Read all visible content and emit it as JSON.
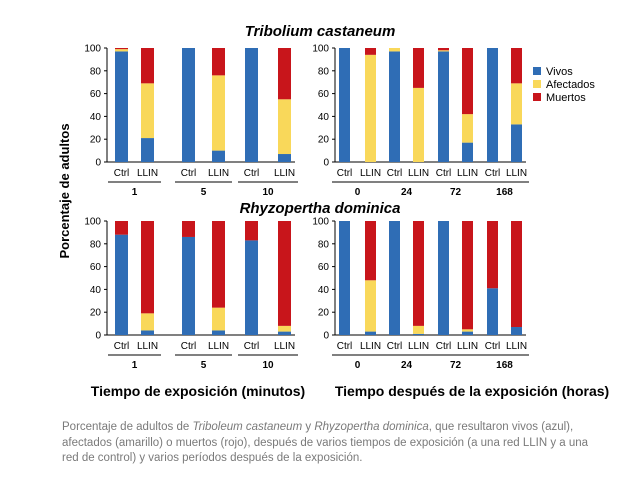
{
  "chart_data": {
    "type": "bar",
    "stacked": true,
    "colors": {
      "Vivos": "#2f6db5",
      "Afectados": "#f9d85a",
      "Muertos": "#c8151b"
    },
    "legend": {
      "entries": [
        "Vivos",
        "Afectados",
        "Muertos"
      ],
      "placement": "top-right"
    },
    "ylabel": "Porcentaje de adultos",
    "ylim": [
      0,
      100
    ],
    "yticks": [
      0,
      20,
      40,
      60,
      80,
      100
    ],
    "xlabel_left": "Tiempo de exposición (minutos)",
    "xlabel_right": "Tiempo después de la exposición (horas)",
    "bar_labels": [
      "Ctrl",
      "LLIN"
    ],
    "rows": [
      {
        "species": "Tribolium castaneum",
        "panels": [
          {
            "groups": [
              {
                "label": "1",
                "bars": [
                  {
                    "label": "Ctrl",
                    "Vivos": 97,
                    "Afectados": 2,
                    "Muertos": 1
                  },
                  {
                    "label": "LLIN",
                    "Vivos": 21,
                    "Afectados": 48,
                    "Muertos": 31
                  }
                ]
              },
              {
                "label": "5",
                "bars": [
                  {
                    "label": "Ctrl",
                    "Vivos": 100,
                    "Afectados": 0,
                    "Muertos": 0
                  },
                  {
                    "label": "LLIN",
                    "Vivos": 10,
                    "Afectados": 66,
                    "Muertos": 24
                  }
                ]
              },
              {
                "label": "10",
                "bars": [
                  {
                    "label": "Ctrl",
                    "Vivos": 100,
                    "Afectados": 0,
                    "Muertos": 0
                  },
                  {
                    "label": "LLIN",
                    "Vivos": 7,
                    "Afectados": 48,
                    "Muertos": 45
                  }
                ]
              }
            ]
          },
          {
            "groups": [
              {
                "label": "0",
                "bars": [
                  {
                    "label": "Ctrl",
                    "Vivos": 100,
                    "Afectados": 0,
                    "Muertos": 0
                  },
                  {
                    "label": "LLIN",
                    "Vivos": 0,
                    "Afectados": 94,
                    "Muertos": 6
                  }
                ]
              },
              {
                "label": "24",
                "bars": [
                  {
                    "label": "Ctrl",
                    "Vivos": 97,
                    "Afectados": 3,
                    "Muertos": 0
                  },
                  {
                    "label": "LLIN",
                    "Vivos": 0,
                    "Afectados": 65,
                    "Muertos": 35
                  }
                ]
              },
              {
                "label": "72",
                "bars": [
                  {
                    "label": "Ctrl",
                    "Vivos": 97,
                    "Afectados": 1,
                    "Muertos": 2
                  },
                  {
                    "label": "LLIN",
                    "Vivos": 17,
                    "Afectados": 25,
                    "Muertos": 58
                  }
                ]
              },
              {
                "label": "168",
                "bars": [
                  {
                    "label": "Ctrl",
                    "Vivos": 100,
                    "Afectados": 0,
                    "Muertos": 0
                  },
                  {
                    "label": "LLIN",
                    "Vivos": 33,
                    "Afectados": 36,
                    "Muertos": 31
                  }
                ]
              }
            ]
          }
        ]
      },
      {
        "species": "Rhyzopertha dominica",
        "panels": [
          {
            "groups": [
              {
                "label": "1",
                "bars": [
                  {
                    "label": "Ctrl",
                    "Vivos": 88,
                    "Afectados": 0,
                    "Muertos": 12
                  },
                  {
                    "label": "LLIN",
                    "Vivos": 4,
                    "Afectados": 15,
                    "Muertos": 81
                  }
                ]
              },
              {
                "label": "5",
                "bars": [
                  {
                    "label": "Ctrl",
                    "Vivos": 86,
                    "Afectados": 0,
                    "Muertos": 14
                  },
                  {
                    "label": "LLIN",
                    "Vivos": 4,
                    "Afectados": 20,
                    "Muertos": 76
                  }
                ]
              },
              {
                "label": "10",
                "bars": [
                  {
                    "label": "Ctrl",
                    "Vivos": 83,
                    "Afectados": 0,
                    "Muertos": 17
                  },
                  {
                    "label": "LLIN",
                    "Vivos": 3,
                    "Afectados": 5,
                    "Muertos": 92
                  }
                ]
              }
            ]
          },
          {
            "groups": [
              {
                "label": "0",
                "bars": [
                  {
                    "label": "Ctrl",
                    "Vivos": 100,
                    "Afectados": 0,
                    "Muertos": 0
                  },
                  {
                    "label": "LLIN",
                    "Vivos": 3,
                    "Afectados": 45,
                    "Muertos": 52
                  }
                ]
              },
              {
                "label": "24",
                "bars": [
                  {
                    "label": "Ctrl",
                    "Vivos": 100,
                    "Afectados": 0,
                    "Muertos": 0
                  },
                  {
                    "label": "LLIN",
                    "Vivos": 1,
                    "Afectados": 7,
                    "Muertos": 92
                  }
                ]
              },
              {
                "label": "72",
                "bars": [
                  {
                    "label": "Ctrl",
                    "Vivos": 100,
                    "Afectados": 0,
                    "Muertos": 0
                  },
                  {
                    "label": "LLIN",
                    "Vivos": 3,
                    "Afectados": 2,
                    "Muertos": 95
                  }
                ]
              },
              {
                "label": "168",
                "bars": [
                  {
                    "label": "Ctrl",
                    "Vivos": 41,
                    "Afectados": 0,
                    "Muertos": 59
                  },
                  {
                    "label": "LLIN",
                    "Vivos": 7,
                    "Afectados": 0,
                    "Muertos": 93
                  }
                ]
              }
            ]
          }
        ]
      }
    ]
  },
  "caption": {
    "prefix": "Porcentaje de adultos de ",
    "species1": "Triboleum castaneum",
    "middle": " y ",
    "species2": "Rhyzopertha dominica",
    "suffix": ", que resultaron vivos (azul), afectados (amarillo) o muertos (rojo), después de varios tiempos de exposición (a una red LLIN y a una red de control)  y varios períodos después de la exposición."
  }
}
